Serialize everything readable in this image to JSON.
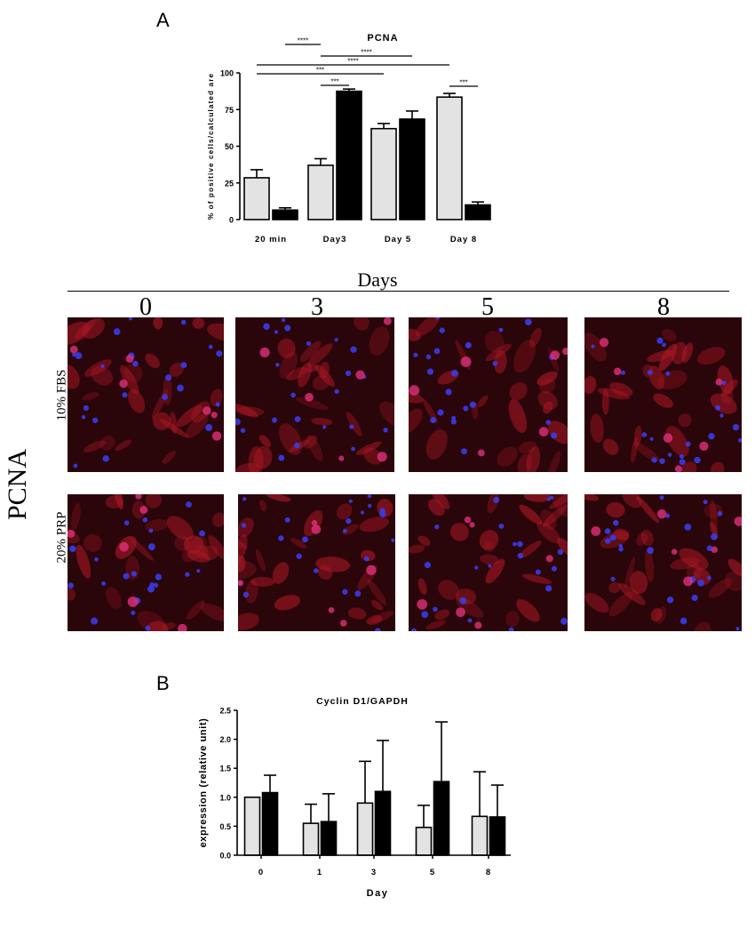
{
  "panel_a": {
    "letter": "A",
    "grid": {
      "header": "Days",
      "columns": [
        "0",
        "3",
        "5",
        "8"
      ],
      "side_label": "PCNA",
      "rows": [
        "10% FBS",
        "20% PRP"
      ]
    }
  },
  "panel_b": {
    "letter": "B"
  },
  "colors": {
    "bar_light": "#e3e3e3",
    "bar_dark": "#000000",
    "micro_red": "#b01826",
    "micro_blue": "#3a3ce8"
  },
  "chart_data": [
    {
      "type": "bar",
      "title": "PCNA",
      "xlabel": "",
      "ylabel": "% of positive cells/calculated are",
      "ylim": [
        0,
        100
      ],
      "yticks": [
        "0",
        "25",
        "50",
        "75",
        "100"
      ],
      "categories": [
        "20 min",
        "Day3",
        "Day 5",
        "Day 8"
      ],
      "series": [
        {
          "values": [
            28.5,
            37,
            62,
            83.5
          ],
          "errors": [
            5.5,
            4.5,
            3.5,
            2.5
          ],
          "color": "#e3e3e3"
        },
        {
          "values": [
            6.5,
            87.5,
            68.5,
            10
          ],
          "errors": [
            1.5,
            1.5,
            5.5,
            2
          ],
          "color": "#000000"
        }
      ],
      "significance": [
        {
          "label": "****",
          "from": "20 min:1",
          "to": "Day3:0"
        },
        {
          "label": "****",
          "from": "Day3:0",
          "to": "Day 5:1"
        },
        {
          "label": "****",
          "from": "20 min:0",
          "to": "Day 8:0"
        },
        {
          "label": "***",
          "from": "20 min:0",
          "to": "Day 5:0"
        },
        {
          "label": "***",
          "from": "Day3:0",
          "to": "Day3:1"
        },
        {
          "label": "***",
          "from": "Day 8:0",
          "to": "Day 8:1"
        }
      ]
    },
    {
      "type": "bar",
      "title": "Cyclin D1/GAPDH",
      "xlabel": "Day",
      "ylabel": "expression (relative unit)",
      "ylim": [
        0,
        2.5
      ],
      "yticks": [
        "0.0",
        "0.5",
        "1.0",
        "1.5",
        "2.0",
        "2.5"
      ],
      "categories": [
        "0",
        "1",
        "3",
        "5",
        "8"
      ],
      "series": [
        {
          "values": [
            1.0,
            0.55,
            0.9,
            0.48,
            0.67
          ],
          "errors": [
            0,
            0.33,
            0.72,
            0.38,
            0.77
          ],
          "color": "#e3e3e3"
        },
        {
          "values": [
            1.08,
            0.58,
            1.1,
            1.27,
            0.66
          ],
          "errors": [
            0.3,
            0.48,
            0.88,
            1.03,
            0.55
          ],
          "color": "#000000"
        }
      ]
    }
  ]
}
